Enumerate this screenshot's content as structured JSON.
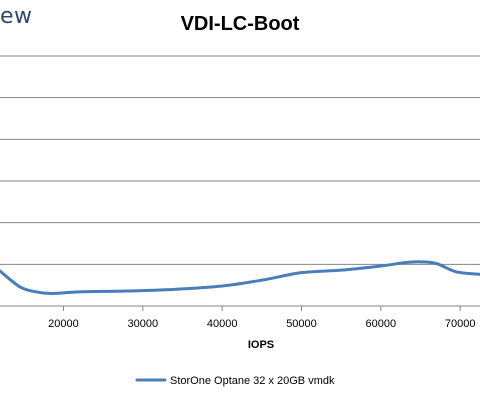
{
  "header": {
    "brand_text": "ew"
  },
  "chart_data": {
    "type": "line",
    "title": "VDI-LC-Boot",
    "xlabel": "IOPS",
    "ylabel": "",
    "xlim": [
      12000,
      72500
    ],
    "ylim": [
      0,
      6
    ],
    "xticks": [
      20000,
      30000,
      40000,
      50000,
      60000,
      70000
    ],
    "xtick_labels": [
      "20000",
      "30000",
      "40000",
      "50000",
      "60000",
      "70000"
    ],
    "grid": true,
    "legend_position": "bottom",
    "series": [
      {
        "name": "StorOne Optane 32 x 20GB vmdk",
        "color": "#4a7ebb",
        "x": [
          12000,
          14500,
          16500,
          18500,
          22000,
          28000,
          34000,
          40000,
          45000,
          50000,
          55000,
          60000,
          63000,
          65000,
          67000,
          69500,
          72500
        ],
        "y": [
          0.84,
          0.46,
          0.34,
          0.3,
          0.34,
          0.36,
          0.4,
          0.48,
          0.62,
          0.8,
          0.86,
          0.96,
          1.04,
          1.06,
          1.02,
          0.82,
          0.76
        ]
      }
    ]
  }
}
